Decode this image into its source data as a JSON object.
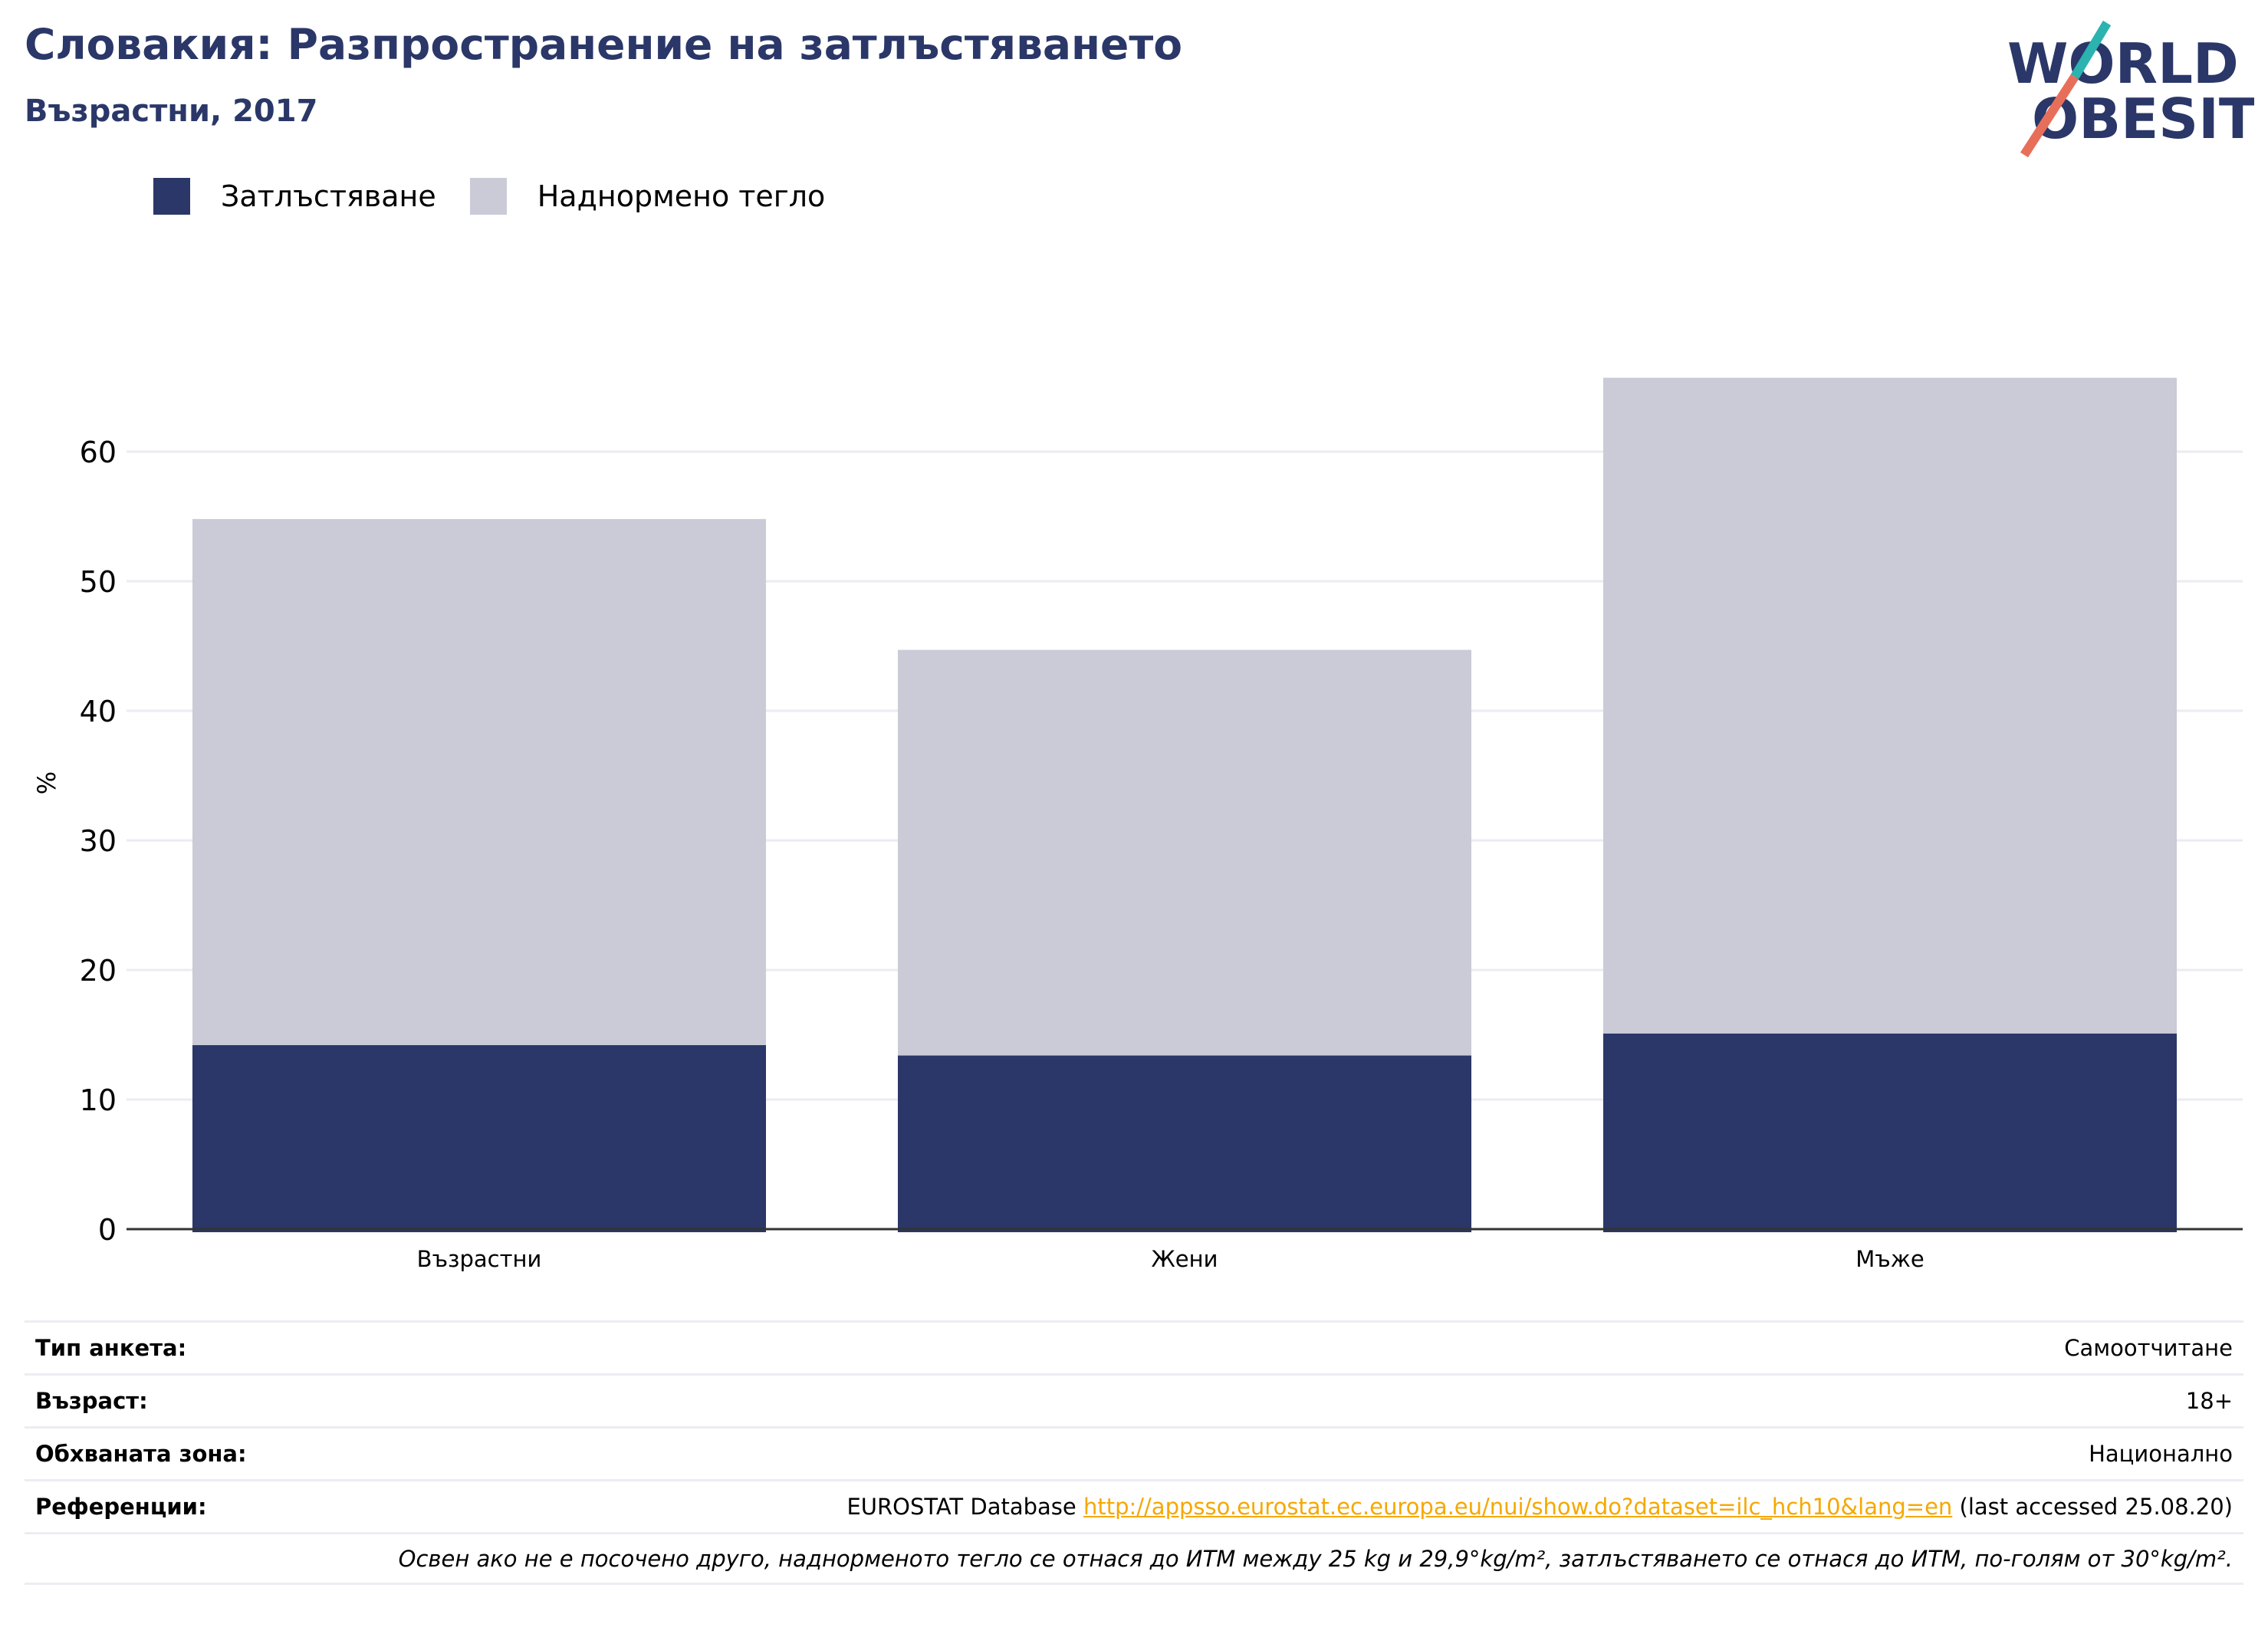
{
  "title": "Словакия: Разпространение на затлъстяването",
  "subtitle": "Възрастни, 2017",
  "logo": {
    "line1": "WORLD",
    "line2": "OBESITY"
  },
  "legend": [
    {
      "label": "Затлъстяване",
      "color": "#2a3768"
    },
    {
      "label": "Наднормено тегло",
      "color": "#cacbd7"
    }
  ],
  "chart_data": {
    "type": "bar",
    "stacked": true,
    "categories": [
      "Възрастни",
      "Жени",
      "Мъже"
    ],
    "series": [
      {
        "name": "Затлъстяване",
        "color": "#2a3768",
        "values": [
          14.2,
          13.4,
          15.1
        ]
      },
      {
        "name": "Наднормено тегло",
        "color": "#cacbd7",
        "values": [
          40.6,
          31.3,
          50.6
        ]
      }
    ],
    "ylabel": "%",
    "ylim": [
      0,
      70
    ],
    "yticks": [
      0,
      10,
      20,
      30,
      40,
      50,
      60
    ],
    "grid": true,
    "legend_position": "top-left"
  },
  "info": {
    "survey_label": "Тип анкета:",
    "survey_value": "Самоотчитане",
    "age_label": "Възраст:",
    "age_value": "18+",
    "area_label": "Обхваната зона:",
    "area_value": "Национално",
    "refs_label": "Референции:",
    "refs_prefix": "EUROSTAT Database",
    "refs_link": "http://appsso.eurostat.ec.europa.eu/nui/show.do?dataset=ilc_hch10&lang=en",
    "refs_suffix": "(last accessed 25.08.20)",
    "note": "Освен ако не е посочено друго, наднорменото тегло се отнася до ИТМ между 25 kg и 29,9°kg/m², затлъстяването се отнася до ИТМ, по-голям от 30°kg/m²."
  }
}
